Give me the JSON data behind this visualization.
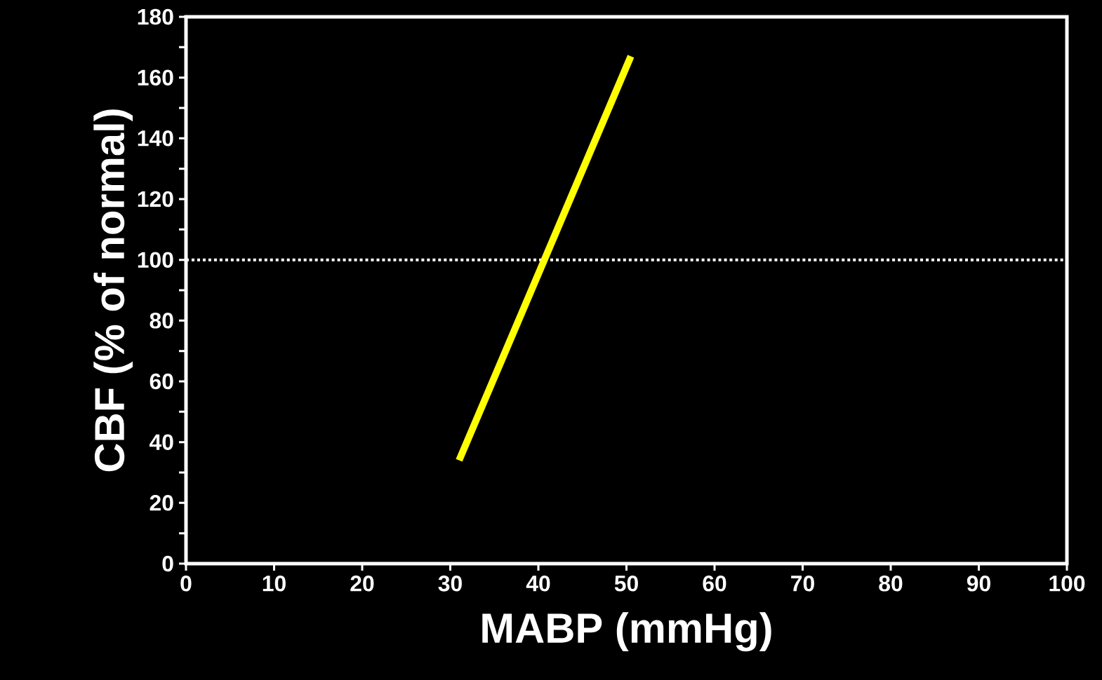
{
  "chart_data": {
    "type": "line",
    "xlabel": "MABP (mmHg)",
    "ylabel": "CBF (% of normal)",
    "x": [
      31,
      50.5
    ],
    "series": [
      {
        "color": "#ffff00",
        "values": [
          34,
          167
        ]
      }
    ],
    "xlim": [
      0,
      100
    ],
    "ylim": [
      0,
      180
    ],
    "xticks": [
      0,
      10,
      20,
      30,
      40,
      50,
      60,
      70,
      80,
      90,
      100
    ],
    "yticks": [
      0,
      {
        "value": 10,
        "label": null
      },
      20,
      {
        "value": 30,
        "label": null
      },
      40,
      {
        "value": 50,
        "label": null
      },
      60,
      {
        "value": 70,
        "label": null
      },
      80,
      {
        "value": 90,
        "label": null
      },
      100,
      {
        "value": 110,
        "label": null
      },
      120,
      {
        "value": 130,
        "label": null
      },
      140,
      {
        "value": 150,
        "label": null
      },
      160,
      {
        "value": 170,
        "label": null
      },
      180
    ],
    "ref_lines": [
      {
        "axis": "y",
        "value": 100,
        "color": "#ffffff",
        "line_style": "dotted"
      }
    ],
    "marker": "none",
    "line_style": "solid"
  }
}
